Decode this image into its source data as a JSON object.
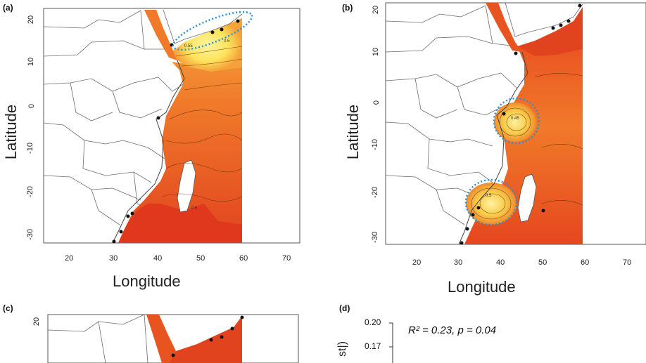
{
  "panels": {
    "a": {
      "letter": "(a)",
      "xlabel": "Longitude",
      "ylabel": "Latitude",
      "xticks": [
        "20",
        "30",
        "40",
        "50",
        "60",
        "70"
      ],
      "yticks": [
        "20",
        "10",
        "0",
        "-10",
        "-20",
        "-30"
      ],
      "contour_labels": [
        "0.55",
        "0.5",
        "0.5"
      ]
    },
    "b": {
      "letter": "(b)",
      "xlabel": "Longitude",
      "ylabel": "Latitude",
      "xticks": [
        "20",
        "30",
        "40",
        "50",
        "60",
        "70"
      ],
      "yticks": [
        "20",
        "10",
        "0",
        "-10",
        "-20",
        "-30"
      ],
      "contour_labels": [
        "0.45",
        "0.5"
      ]
    },
    "c": {
      "letter": "(c)",
      "yticks": [
        "20"
      ]
    },
    "d": {
      "letter": "(d)",
      "stat_text": "R² = 0.23, p = 0.04",
      "yticks": [
        "0.20",
        "0.17"
      ],
      "ylabel_fragment": "st|)"
    }
  },
  "colors": {
    "low": "#d7301f",
    "mid": "#f07a2a",
    "high": "#fde45c",
    "highlight": "#2b8fd6",
    "border": "#6b6b6b"
  }
}
